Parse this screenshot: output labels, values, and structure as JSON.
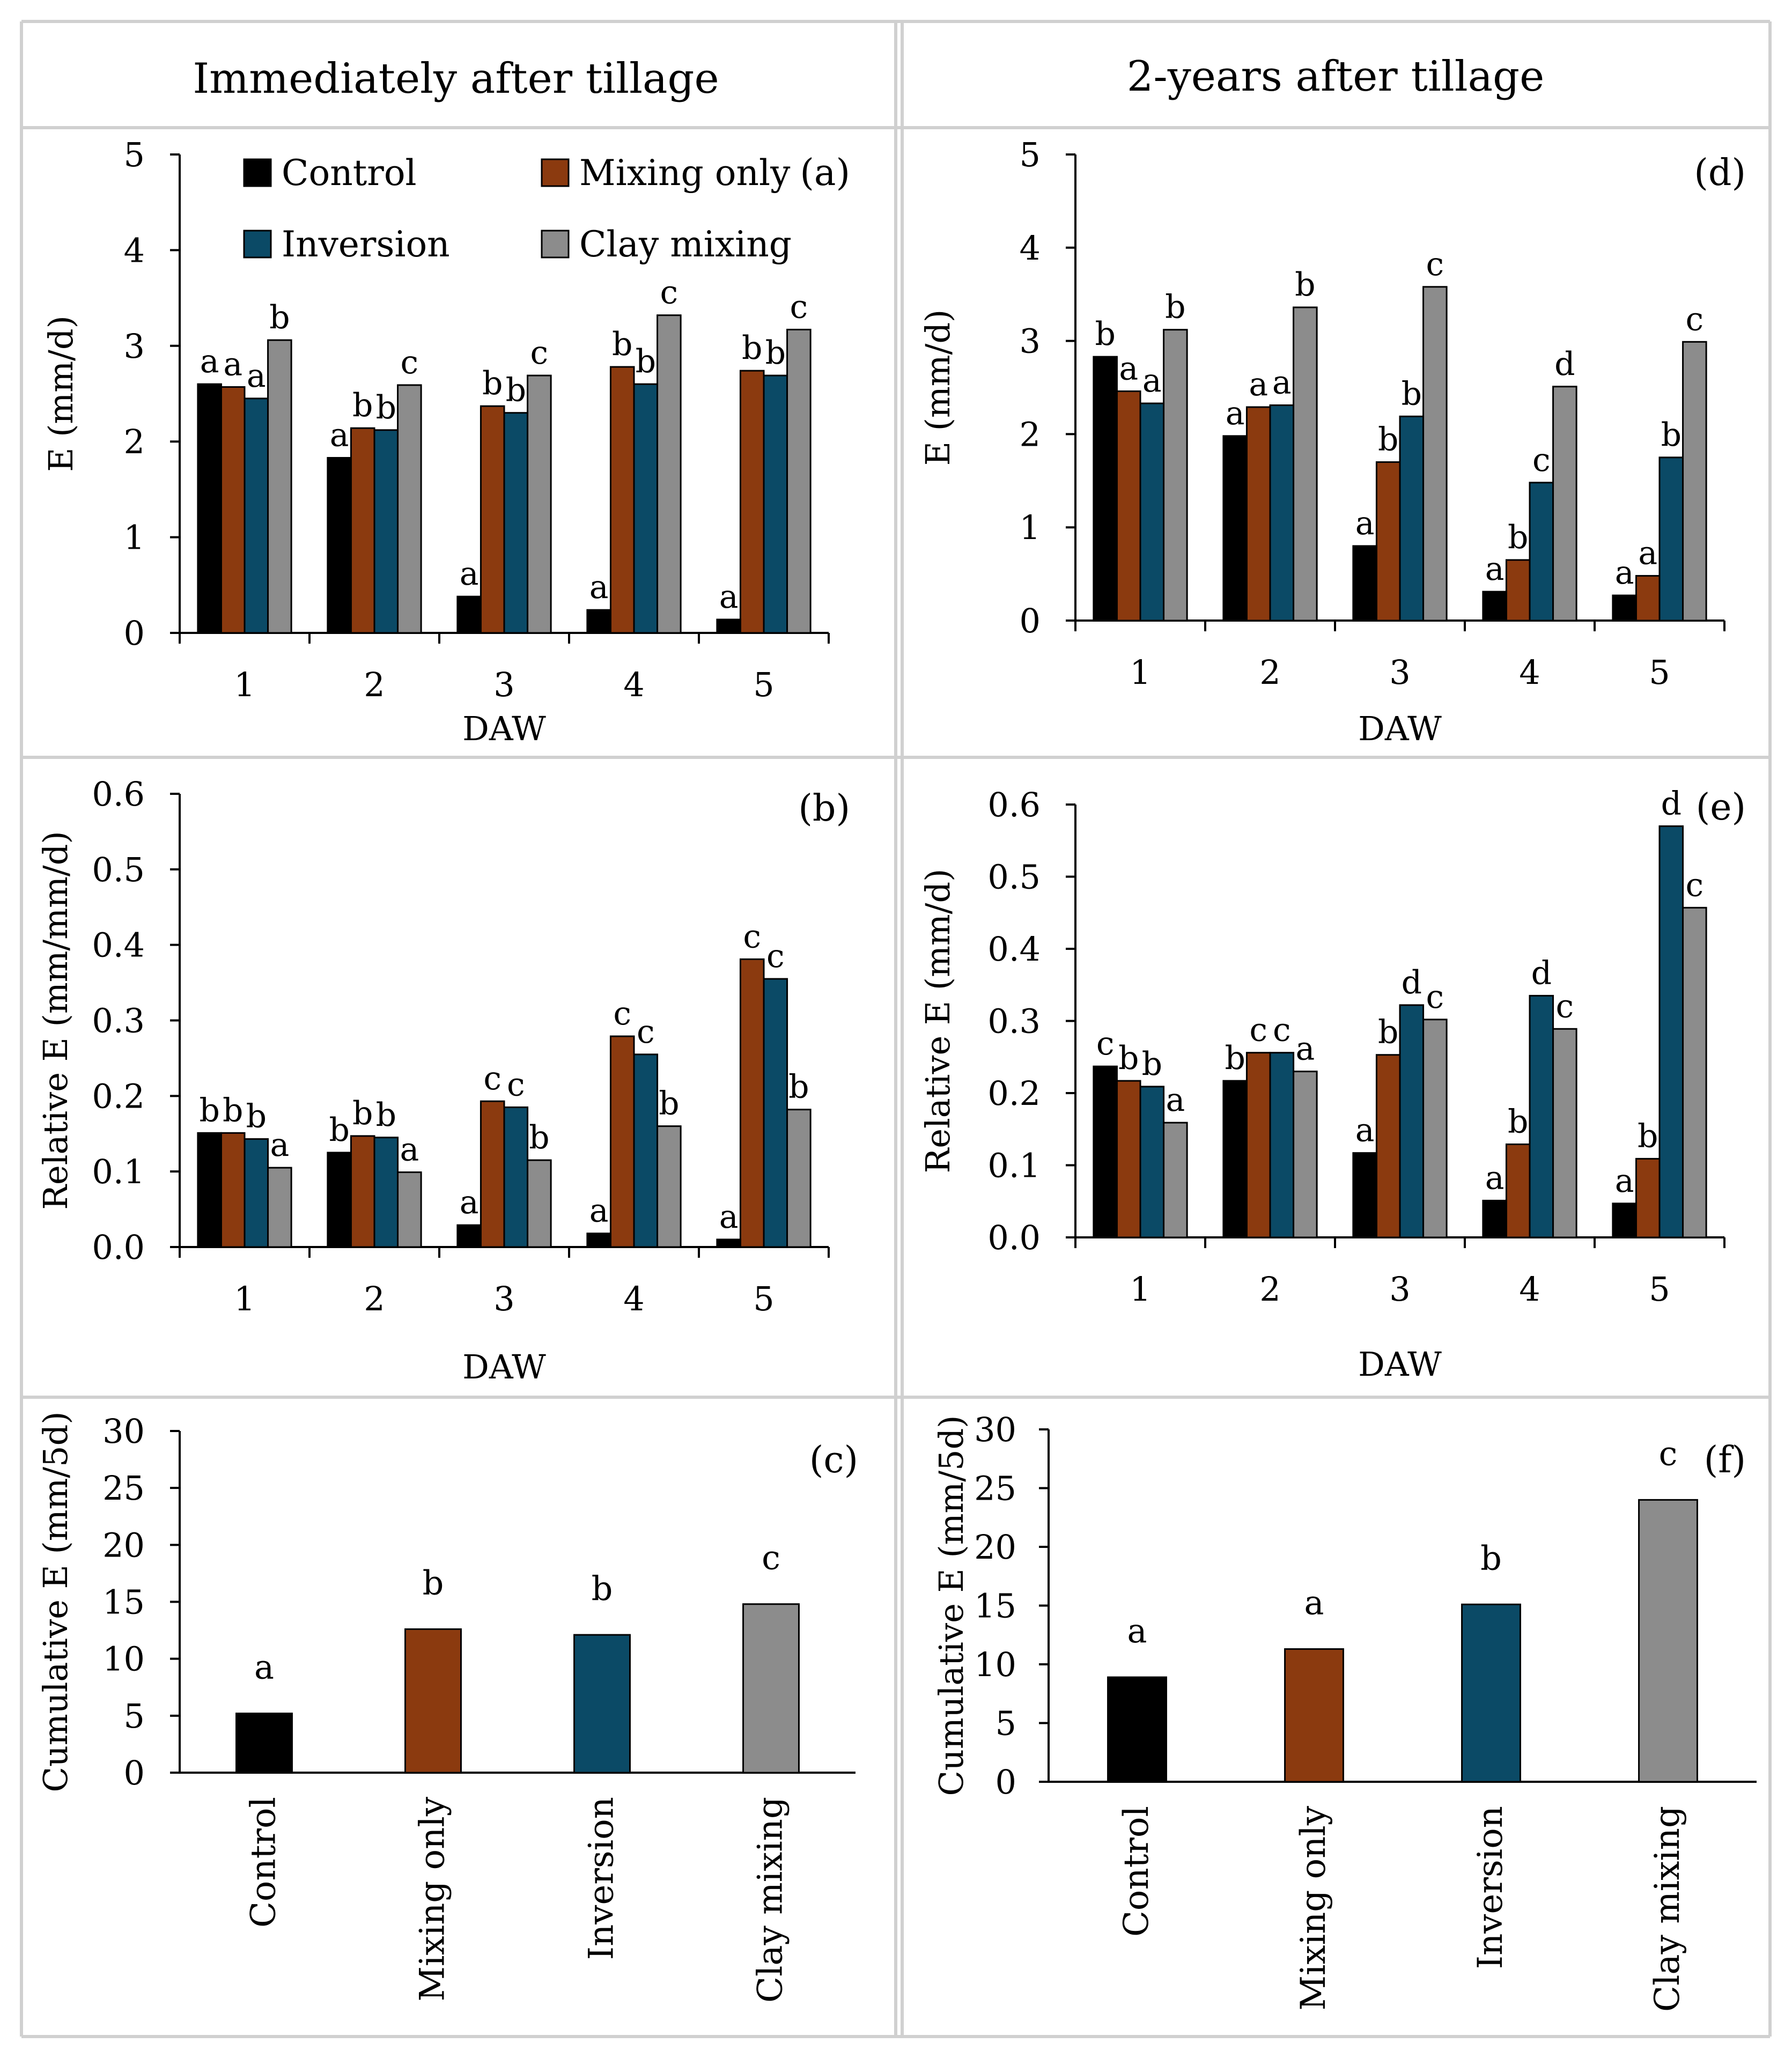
{
  "headers": {
    "left": "Immediately after tillage",
    "right": "2-years after tillage"
  },
  "colors": {
    "Control": "#000000",
    "Mixing only": "#8b3a0f",
    "Inversion": "#0b4a66",
    "Clay mixing": "#8c8c8c"
  },
  "legend": [
    "Control",
    "Mixing only",
    "Inversion",
    "Clay mixing"
  ],
  "chart_data": [
    {
      "id": "a",
      "type": "bar",
      "panel_label": "(a)",
      "xlabel": "DAW",
      "ylabel": "E (mm/d)",
      "ylim": [
        0,
        5
      ],
      "yticks": [
        0,
        1,
        2,
        3,
        4,
        5
      ],
      "ytick_labels": [
        "0",
        "1",
        "2",
        "3",
        "4",
        "5"
      ],
      "categories": [
        "1",
        "2",
        "3",
        "4",
        "5"
      ],
      "legend": true,
      "series": [
        {
          "name": "Control",
          "values": [
            2.6,
            1.83,
            0.38,
            0.24,
            0.14
          ],
          "letters": [
            "a",
            "a",
            "a",
            "a",
            "a"
          ]
        },
        {
          "name": "Mixing only",
          "values": [
            2.57,
            2.14,
            2.37,
            2.78,
            2.74
          ],
          "letters": [
            "a",
            "b",
            "b",
            "b",
            "b"
          ]
        },
        {
          "name": "Inversion",
          "values": [
            2.45,
            2.12,
            2.3,
            2.6,
            2.69
          ],
          "letters": [
            "a",
            "b",
            "b",
            "b",
            "b"
          ]
        },
        {
          "name": "Clay mixing",
          "values": [
            3.06,
            2.59,
            2.69,
            3.32,
            3.17
          ],
          "letters": [
            "b",
            "c",
            "c",
            "c",
            "c"
          ]
        }
      ]
    },
    {
      "id": "b",
      "type": "bar",
      "panel_label": "(b)",
      "xlabel": "DAW",
      "ylabel": "Relative E (mm/mm/d)",
      "ylim": [
        0,
        0.6
      ],
      "yticks": [
        0,
        0.1,
        0.2,
        0.3,
        0.4,
        0.5,
        0.6
      ],
      "ytick_labels": [
        "0.0",
        "0.1",
        "0.2",
        "0.3",
        "0.4",
        "0.5",
        "0.6"
      ],
      "categories": [
        "1",
        "2",
        "3",
        "4",
        "5"
      ],
      "legend": false,
      "series": [
        {
          "name": "Control",
          "values": [
            0.151,
            0.125,
            0.029,
            0.018,
            0.01
          ],
          "letters": [
            "b",
            "b",
            "a",
            "a",
            "a"
          ]
        },
        {
          "name": "Mixing only",
          "values": [
            0.151,
            0.147,
            0.193,
            0.279,
            0.381
          ],
          "letters": [
            "b",
            "b",
            "c",
            "c",
            "c"
          ]
        },
        {
          "name": "Inversion",
          "values": [
            0.143,
            0.145,
            0.185,
            0.255,
            0.355
          ],
          "letters": [
            "b",
            "b",
            "c",
            "c",
            "c"
          ]
        },
        {
          "name": "Clay mixing",
          "values": [
            0.105,
            0.099,
            0.115,
            0.16,
            0.182
          ],
          "letters": [
            "a",
            "a",
            "b",
            "b",
            "b"
          ]
        }
      ]
    },
    {
      "id": "c",
      "type": "bar",
      "panel_label": "(c)",
      "xlabel": "",
      "ylabel": "Cumulative E (mm/5d)",
      "ylim": [
        0,
        30
      ],
      "yticks": [
        0,
        5,
        10,
        15,
        20,
        25,
        30
      ],
      "ytick_labels": [
        "0",
        "5",
        "10",
        "15",
        "20",
        "25",
        "30"
      ],
      "categories": [
        "Control",
        "Mixing only",
        "Inversion",
        "Clay mixing"
      ],
      "values": [
        5.2,
        12.6,
        12.1,
        14.8
      ],
      "letters": [
        "a",
        "b",
        "b",
        "c"
      ]
    },
    {
      "id": "d",
      "type": "bar",
      "panel_label": "(d)",
      "xlabel": "DAW",
      "ylabel": "E (mm/d)",
      "ylim": [
        0,
        5
      ],
      "yticks": [
        0,
        1,
        2,
        3,
        4,
        5
      ],
      "ytick_labels": [
        "0",
        "1",
        "2",
        "3",
        "4",
        "5"
      ],
      "categories": [
        "1",
        "2",
        "3",
        "4",
        "5"
      ],
      "legend": false,
      "series": [
        {
          "name": "Control",
          "values": [
            2.83,
            1.98,
            0.8,
            0.31,
            0.27
          ],
          "letters": [
            "b",
            "a",
            "a",
            "a",
            "a"
          ]
        },
        {
          "name": "Mixing only",
          "values": [
            2.46,
            2.29,
            1.7,
            0.65,
            0.48
          ],
          "letters": [
            "a",
            "a",
            "b",
            "b",
            "a"
          ]
        },
        {
          "name": "Inversion",
          "values": [
            2.33,
            2.31,
            2.19,
            1.48,
            1.75
          ],
          "letters": [
            "a",
            "a",
            "b",
            "c",
            "b"
          ]
        },
        {
          "name": "Clay mixing",
          "values": [
            3.12,
            3.36,
            3.58,
            2.51,
            2.99
          ],
          "letters": [
            "b",
            "b",
            "c",
            "d",
            "c"
          ]
        }
      ]
    },
    {
      "id": "e",
      "type": "bar",
      "panel_label": "(e)",
      "xlabel": "DAW",
      "ylabel": "Relative E (mm/d)",
      "ylim": [
        0,
        0.6
      ],
      "yticks": [
        0,
        0.1,
        0.2,
        0.3,
        0.4,
        0.5,
        0.6
      ],
      "ytick_labels": [
        "0.0",
        "0.1",
        "0.2",
        "0.3",
        "0.4",
        "0.5",
        "0.6"
      ],
      "categories": [
        "1",
        "2",
        "3",
        "4",
        "5"
      ],
      "legend": false,
      "series": [
        {
          "name": "Control",
          "values": [
            0.237,
            0.217,
            0.117,
            0.051,
            0.047
          ],
          "letters": [
            "c",
            "b",
            "a",
            "a",
            "a"
          ]
        },
        {
          "name": "Mixing only",
          "values": [
            0.217,
            0.256,
            0.253,
            0.129,
            0.109
          ],
          "letters": [
            "b",
            "c",
            "b",
            "b",
            "b"
          ]
        },
        {
          "name": "Inversion",
          "values": [
            0.209,
            0.256,
            0.322,
            0.335,
            0.57
          ],
          "letters": [
            "b",
            "c",
            "d",
            "d",
            "d"
          ]
        },
        {
          "name": "Clay mixing",
          "values": [
            0.159,
            0.23,
            0.302,
            0.289,
            0.457
          ],
          "letters": [
            "a",
            "a",
            "c",
            "c",
            "c"
          ]
        }
      ]
    },
    {
      "id": "f",
      "type": "bar",
      "panel_label": "(f)",
      "xlabel": "",
      "ylabel": "Cumulative E (mm/5d)",
      "ylim": [
        0,
        30
      ],
      "yticks": [
        0,
        5,
        10,
        15,
        20,
        25,
        30
      ],
      "ytick_labels": [
        "0",
        "5",
        "10",
        "15",
        "20",
        "25",
        "30"
      ],
      "categories": [
        "Control",
        "Mixing only",
        "Inversion",
        "Clay mixing"
      ],
      "values": [
        8.9,
        11.3,
        15.1,
        24.0
      ],
      "letters": [
        "a",
        "a",
        "b",
        "c"
      ]
    }
  ]
}
